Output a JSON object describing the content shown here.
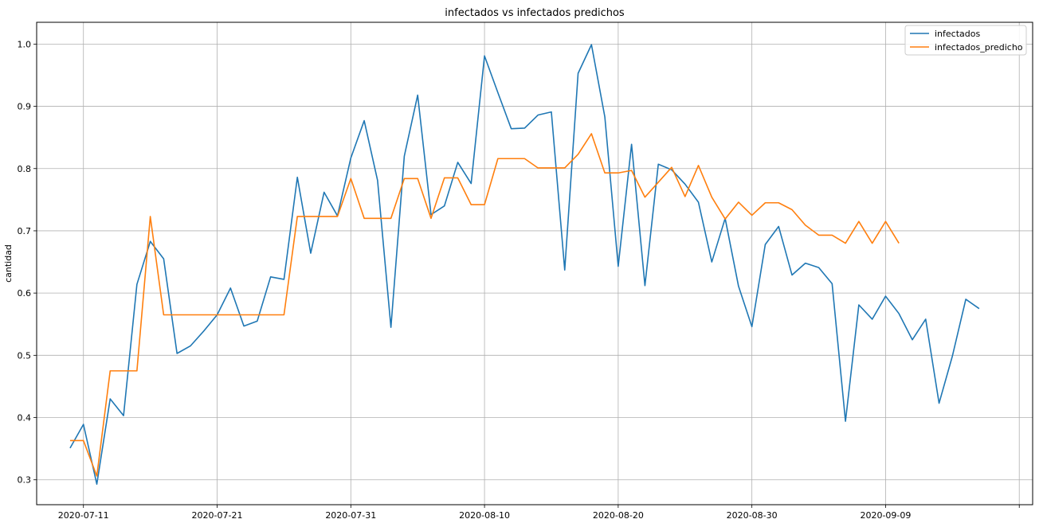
{
  "chart_data": {
    "type": "line",
    "title": "infectados vs infectados predichos",
    "xlabel": "",
    "ylabel": "cantidad",
    "ylim": [
      0.26,
      1.035
    ],
    "xlim_days": [
      -3.5,
      71
    ],
    "start_date": "2020-07-11",
    "x_ticks": [
      {
        "day": 0,
        "label": "2020-07-11"
      },
      {
        "day": 10,
        "label": "2020-07-21"
      },
      {
        "day": 20,
        "label": "2020-07-31"
      },
      {
        "day": 30,
        "label": "2020-08-10"
      },
      {
        "day": 40,
        "label": "2020-08-20"
      },
      {
        "day": 50,
        "label": "2020-08-30"
      },
      {
        "day": 60,
        "label": "2020-09-09"
      },
      {
        "day": 70,
        "label": ""
      }
    ],
    "y_ticks": [
      {
        "value": 0.3,
        "label": "0.3"
      },
      {
        "value": 0.4,
        "label": "0.4"
      },
      {
        "value": 0.5,
        "label": "0.5"
      },
      {
        "value": 0.6,
        "label": "0.6"
      },
      {
        "value": 0.7,
        "label": "0.7"
      },
      {
        "value": 0.8,
        "label": "0.8"
      },
      {
        "value": 0.9,
        "label": "0.9"
      },
      {
        "value": 1.0,
        "label": "1.0"
      }
    ],
    "grid": true,
    "legend_position": "top-right",
    "series": [
      {
        "name": "infectados",
        "color": "#1f77b4",
        "x0": -1,
        "values": [
          0.351,
          0.389,
          0.293,
          0.43,
          0.403,
          0.614,
          0.683,
          0.655,
          0.503,
          0.515,
          0.539,
          0.565,
          0.608,
          0.547,
          0.555,
          0.626,
          0.622,
          0.786,
          0.664,
          0.762,
          0.724,
          0.817,
          0.877,
          0.781,
          0.545,
          0.82,
          0.918,
          0.726,
          0.74,
          0.81,
          0.776,
          0.981,
          0.922,
          0.864,
          0.865,
          0.886,
          0.891,
          0.637,
          0.953,
          0.999,
          0.883,
          0.643,
          0.839,
          0.612,
          0.807,
          0.798,
          0.775,
          0.746,
          0.65,
          0.72,
          0.611,
          0.546,
          0.678,
          0.707,
          0.629,
          0.648,
          0.641,
          0.615,
          0.394,
          0.581,
          0.558,
          0.595,
          0.567,
          0.525,
          0.558,
          0.423,
          0.499,
          0.59,
          0.575
        ]
      },
      {
        "name": "infectados_predicho",
        "color": "#ff7f0e",
        "x0": -1,
        "values": [
          0.363,
          0.363,
          0.306,
          0.475,
          0.475,
          0.475,
          0.723,
          0.565,
          0.565,
          0.565,
          0.565,
          0.565,
          0.565,
          0.565,
          0.565,
          0.565,
          0.565,
          0.723,
          0.723,
          0.723,
          0.723,
          0.784,
          0.72,
          0.72,
          0.72,
          0.784,
          0.784,
          0.72,
          0.785,
          0.785,
          0.742,
          0.742,
          0.816,
          0.816,
          0.816,
          0.801,
          0.801,
          0.801,
          0.823,
          0.856,
          0.793,
          0.793,
          0.797,
          0.754,
          0.778,
          0.802,
          0.755,
          0.805,
          0.754,
          0.719,
          0.746,
          0.725,
          0.745,
          0.745,
          0.734,
          0.709,
          0.693,
          0.693,
          0.68,
          0.715,
          0.68,
          0.715,
          0.68
        ]
      }
    ]
  }
}
